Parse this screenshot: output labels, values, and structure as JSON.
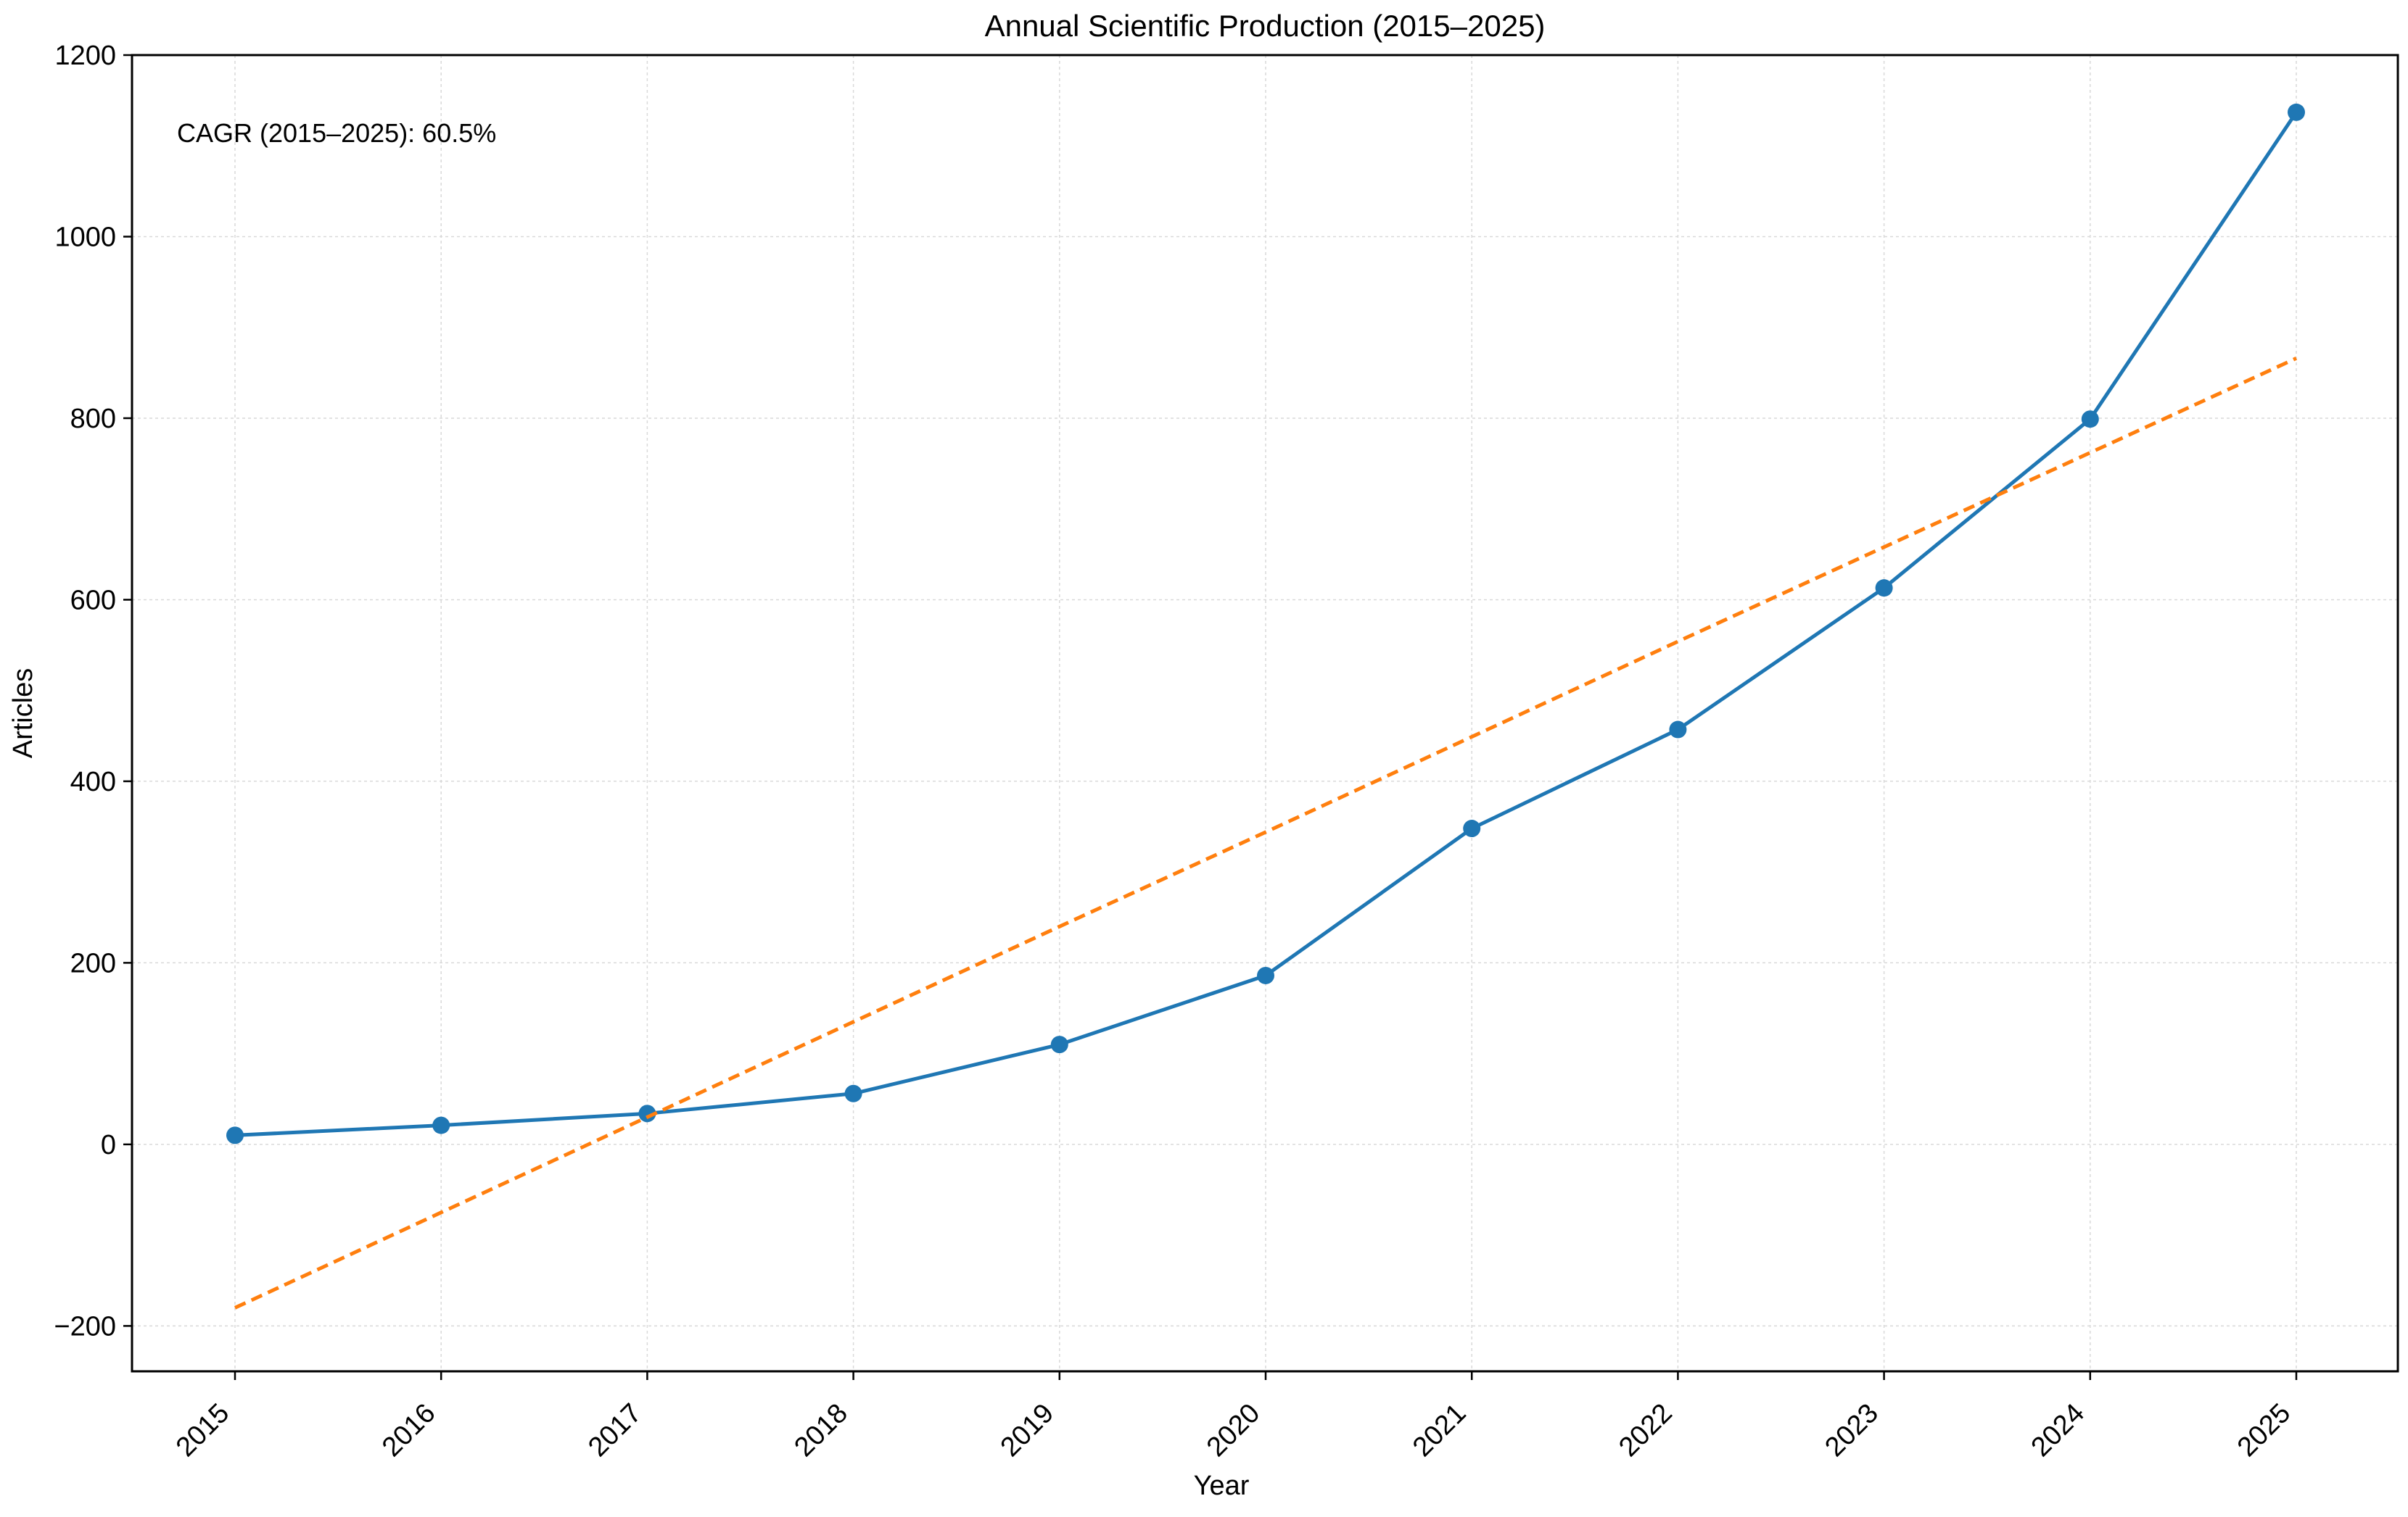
{
  "chart_data": {
    "type": "line",
    "title": "Annual Scientific Production (2015–2025)",
    "xlabel": "Year",
    "ylabel": "Articles",
    "categories": [
      "2015",
      "2016",
      "2017",
      "2018",
      "2019",
      "2020",
      "2021",
      "2022",
      "2023",
      "2024",
      "2025"
    ],
    "y_ticks": [
      "−200",
      "0",
      "200",
      "400",
      "600",
      "800",
      "1000",
      "1200"
    ],
    "y_tick_values": [
      -200,
      0,
      200,
      400,
      600,
      800,
      1000,
      1200
    ],
    "ylim": [
      -250,
      1200
    ],
    "grid": true,
    "annotation": "CAGR (2015–2025): 60.5%",
    "series": [
      {
        "values": [
          10,
          21,
          34,
          56,
          110,
          186,
          348,
          457,
          613,
          799,
          1137
        ],
        "color": "#1f77b4",
        "style": "solid",
        "marker": "circle"
      },
      {
        "values": [
          -180,
          -75,
          30,
          135,
          240,
          344,
          449,
          554,
          658,
          762,
          866
        ],
        "color": "#ff7f0e",
        "style": "dashed",
        "marker": "none"
      }
    ]
  }
}
